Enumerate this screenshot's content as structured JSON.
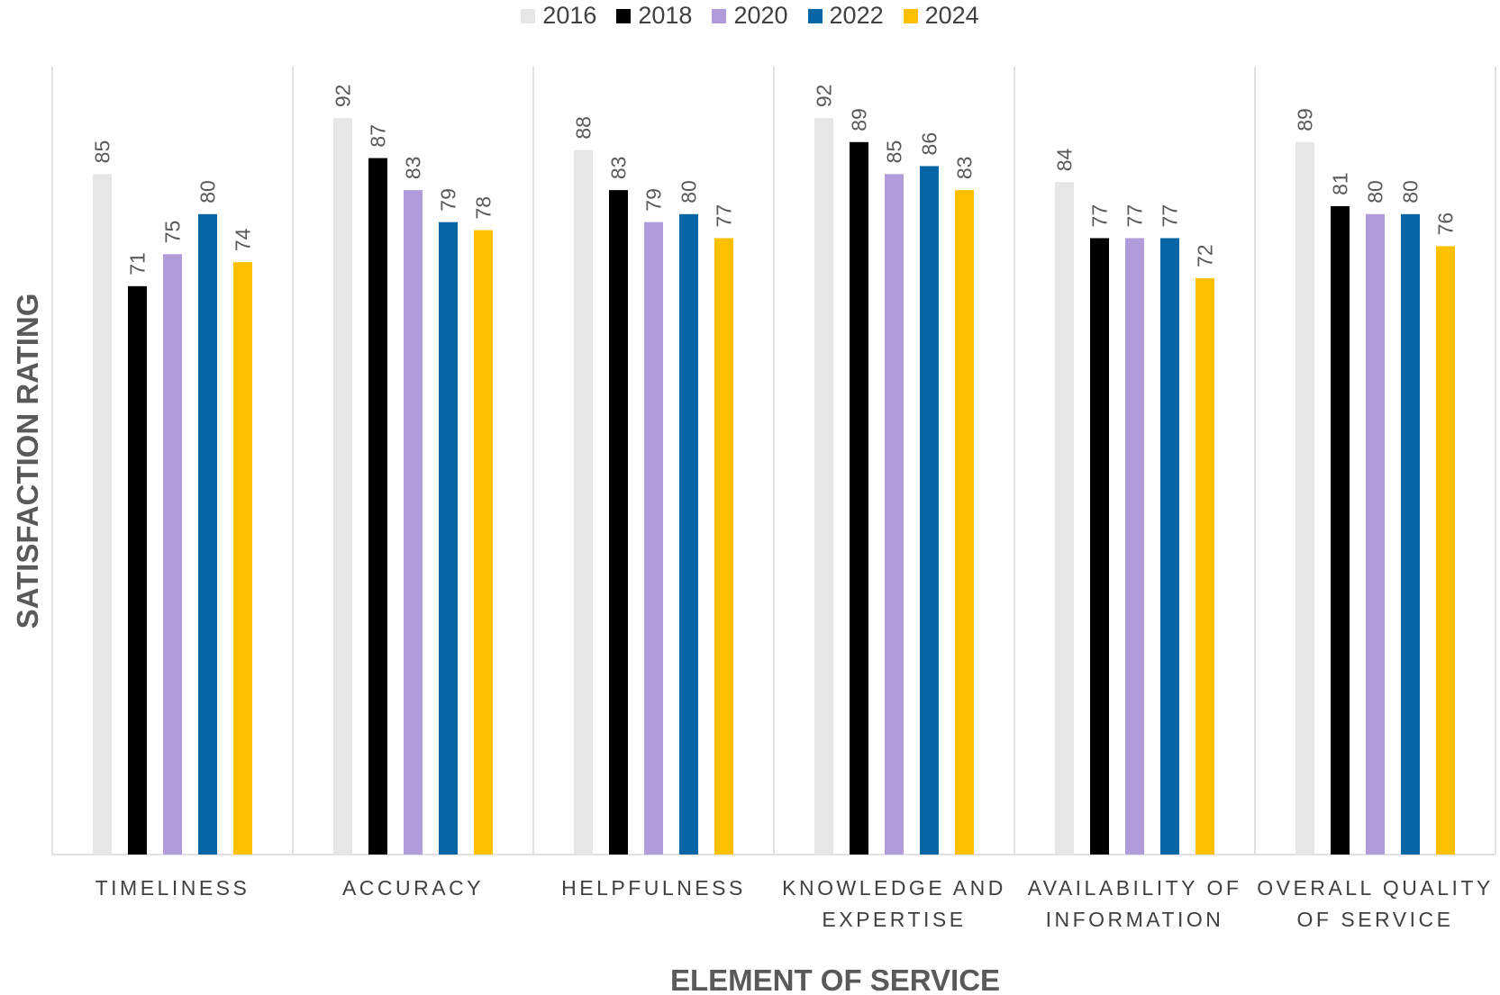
{
  "chart_data": {
    "type": "bar",
    "title": "",
    "xlabel": "ELEMENT OF SERVICE",
    "ylabel": "SATISFACTION RATING",
    "ylim": [
      0,
      100
    ],
    "grid": false,
    "legend_position": "top",
    "categories": [
      [
        "TIMELINESS"
      ],
      [
        "ACCURACY"
      ],
      [
        "HELPFULNESS"
      ],
      [
        "KNOWLEDGE AND",
        "EXPERTISE"
      ],
      [
        "AVAILABILITY OF",
        "INFORMATION"
      ],
      [
        "OVERALL QUALITY",
        "OF SERVICE"
      ]
    ],
    "series": [
      {
        "name": "2016",
        "color": "#e6e6e6",
        "values": [
          85,
          92,
          88,
          92,
          84,
          89
        ]
      },
      {
        "name": "2018",
        "color": "#000000",
        "values": [
          71,
          87,
          83,
          89,
          77,
          81
        ]
      },
      {
        "name": "2020",
        "color": "#b19cdb",
        "values": [
          75,
          83,
          79,
          85,
          77,
          80
        ]
      },
      {
        "name": "2022",
        "color": "#0565a5",
        "values": [
          80,
          79,
          80,
          86,
          77,
          80
        ]
      },
      {
        "name": "2024",
        "color": "#ffc000",
        "values": [
          74,
          78,
          77,
          83,
          72,
          76
        ]
      }
    ]
  }
}
